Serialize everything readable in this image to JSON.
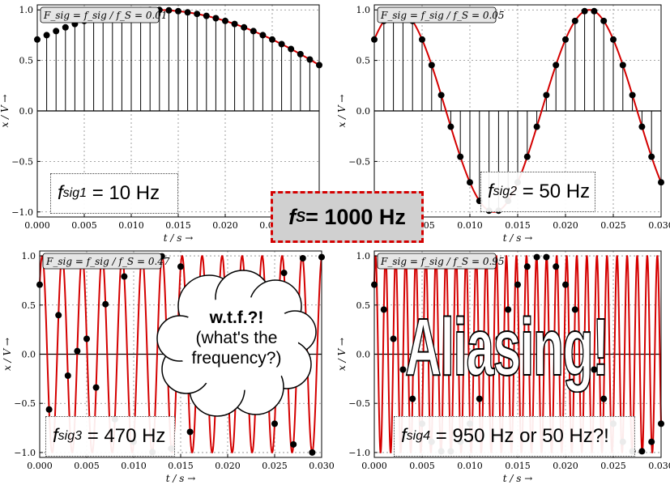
{
  "colors": {
    "signal": "#d40000",
    "samples": "#000000",
    "axis": "#000000"
  },
  "common_axes": {
    "xlabel": "t / s →",
    "ylabel": "x / V →",
    "xlim": [
      0,
      0.03
    ],
    "ylim": [
      -1.05,
      1.05
    ],
    "xticks": [
      "0.000",
      "0.005",
      "0.010",
      "0.015",
      "0.020",
      "0.025",
      "0.030"
    ],
    "yticks": [
      "1.0",
      "0.5",
      "0.0",
      "−0.5",
      "−1.0"
    ],
    "grid": true
  },
  "center_label": {
    "f": "f",
    "sub": "S",
    "text": " = 1000 Hz"
  },
  "cloud": {
    "line1": "w.t.f.?!",
    "line2": "(what's the",
    "line3": "frequency?)"
  },
  "aliasing_text": "Aliasing!",
  "chart_data": [
    {
      "type": "line",
      "fsig_hz": 10,
      "sample_rate_hz": 1000,
      "phase_deg": 45,
      "amplitude": 1.0,
      "title": "F_sig = f_sig / f_S = 0.01",
      "sig_label_sub": "sig1",
      "sig_label_value": "= 10 Hz",
      "show_stems": true,
      "show_continuous_until": 0.015
    },
    {
      "type": "line",
      "fsig_hz": 50,
      "sample_rate_hz": 1000,
      "phase_deg": 45,
      "amplitude": 1.0,
      "title": "F_sig = f_sig / f_S = 0.05",
      "sig_label_sub": "sig2",
      "sig_label_value": "= 50 Hz",
      "show_stems": true
    },
    {
      "type": "line",
      "fsig_hz": 470,
      "sample_rate_hz": 1000,
      "phase_deg": 45,
      "amplitude": 1.0,
      "title": "F_sig = f_sig / f_S = 0.47",
      "sig_label_sub": "sig3",
      "sig_label_value": "= 470 Hz",
      "show_stems": false
    },
    {
      "type": "line",
      "fsig_hz": 950,
      "sample_rate_hz": 1000,
      "phase_deg": 45,
      "amplitude": 1.0,
      "title": "F_sig = f_sig / f_S = 0.95",
      "sig_label_sub": "sig4",
      "sig_label_value": "= 950 Hz or 50 Hz?!",
      "show_stems": false
    }
  ]
}
